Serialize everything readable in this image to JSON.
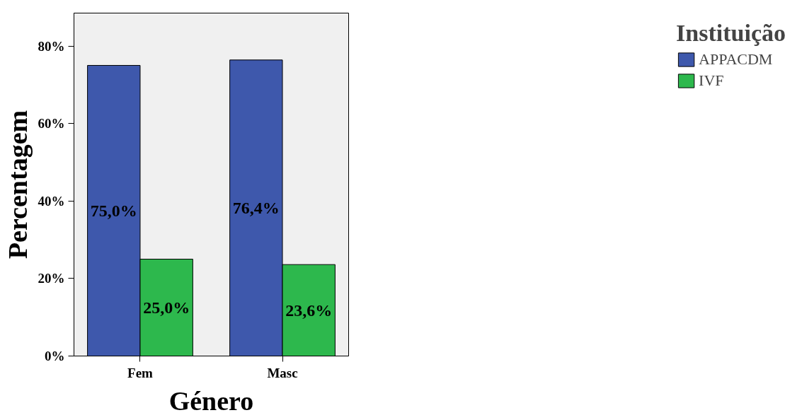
{
  "chart_data": {
    "type": "bar",
    "xlabel": "Género",
    "ylabel": "Percentagem",
    "legend_title": "Instituição",
    "categories": [
      "Fem",
      "Masc"
    ],
    "series": [
      {
        "name": "APPACDM",
        "color": "#3e58ac",
        "values": [
          75.0,
          76.4
        ],
        "value_labels": [
          "75,0%",
          "76,4%"
        ]
      },
      {
        "name": "IVF",
        "color": "#2db84d",
        "values": [
          25.0,
          23.6
        ],
        "value_labels": [
          "25,0%",
          "23,6%"
        ]
      }
    ],
    "ylim": [
      0,
      88.5
    ],
    "yticks": [
      {
        "value": 0,
        "label": "0%"
      },
      {
        "value": 20,
        "label": "20%"
      },
      {
        "value": 40,
        "label": "40%"
      },
      {
        "value": 60,
        "label": "60%"
      },
      {
        "value": 80,
        "label": "80%"
      }
    ],
    "grid": false,
    "legend": "right"
  }
}
